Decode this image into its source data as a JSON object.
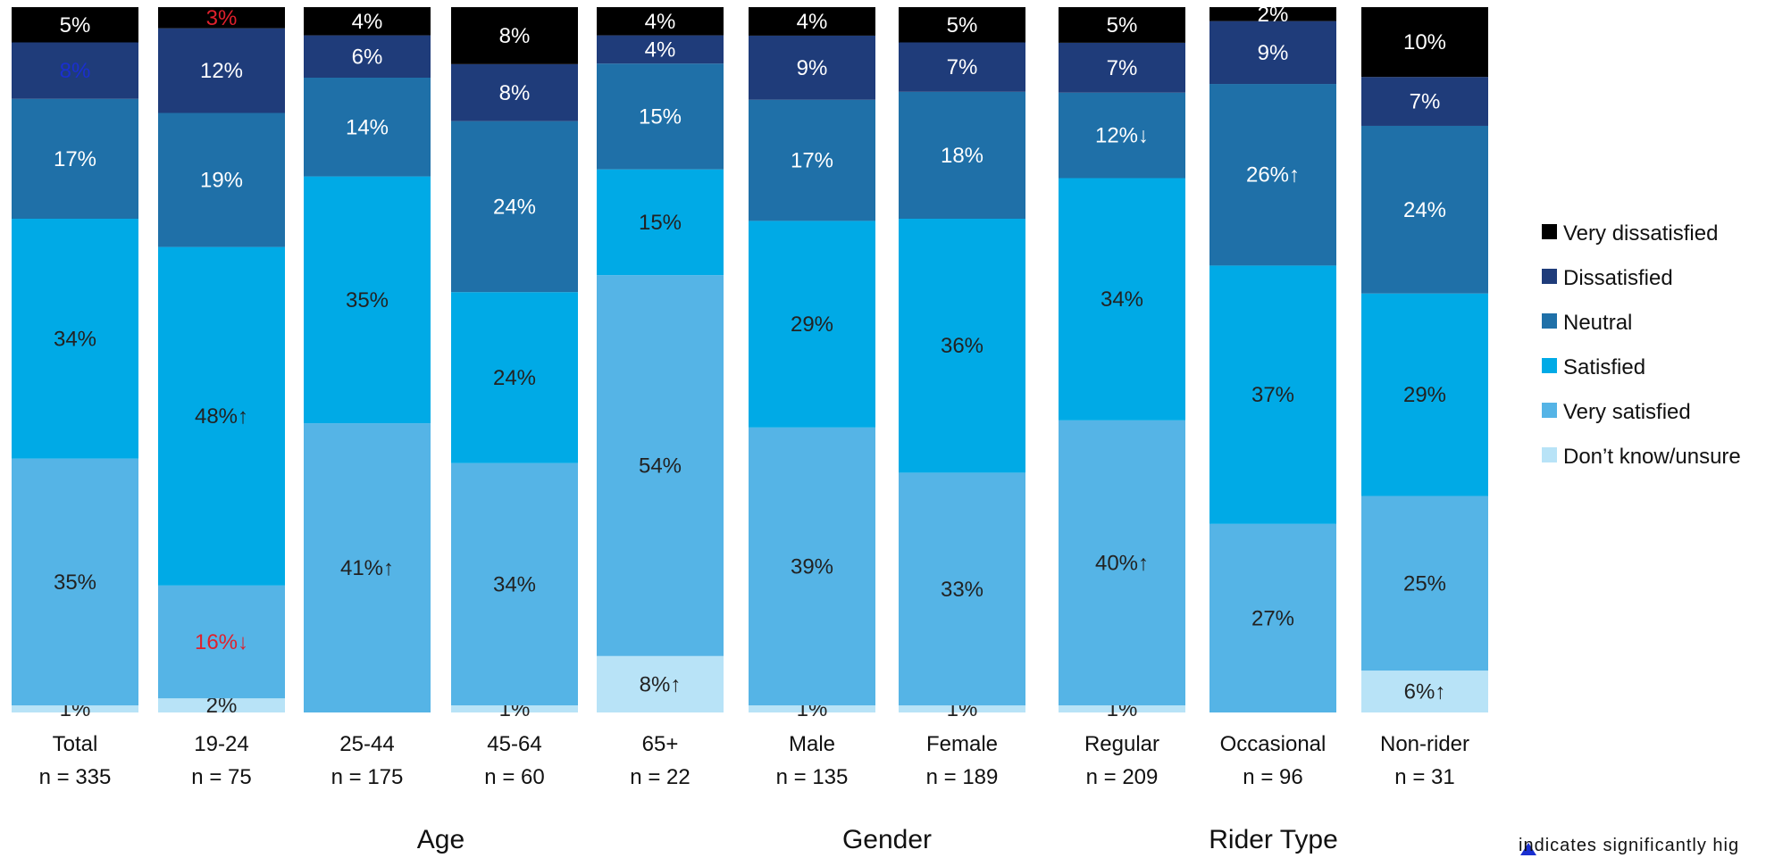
{
  "chart_data": {
    "type": "bar",
    "stacked": true,
    "percent": true,
    "ylim": [
      0,
      100
    ],
    "series": [
      {
        "name": "Don’t know/unsure",
        "color": "#b8e3f7",
        "values": [
          1,
          2,
          0,
          1,
          8,
          1,
          1,
          1,
          0,
          6
        ],
        "labels": [
          "1%",
          "2%",
          "",
          "1%",
          "8%↑",
          "1%",
          "1%",
          "1%",
          "",
          "6%↑"
        ]
      },
      {
        "name": "Very satisfied",
        "color": "#55b4e6",
        "values": [
          35,
          16,
          41,
          34,
          54,
          39,
          33,
          40,
          27,
          25
        ],
        "labels": [
          "35%",
          "16%↓",
          "41%↑",
          "34%",
          "54%",
          "39%",
          "33%",
          "40%↑",
          "27%",
          "25%"
        ]
      },
      {
        "name": "Satisfied",
        "color": "#00aae6",
        "values": [
          34,
          48,
          35,
          24,
          15,
          29,
          36,
          34,
          37,
          29
        ],
        "labels": [
          "34%",
          "48%↑",
          "35%",
          "24%",
          "15%",
          "29%",
          "36%",
          "34%",
          "37%",
          "29%"
        ]
      },
      {
        "name": "Neutral",
        "color": "#1f70a8",
        "values": [
          17,
          19,
          14,
          24,
          15,
          17,
          18,
          12,
          26,
          24
        ],
        "labels": [
          "17%",
          "19%",
          "14%",
          "24%",
          "15%",
          "17%",
          "18%",
          "12%↓",
          "26%↑",
          "24%"
        ]
      },
      {
        "name": "Dissatisfied",
        "color": "#1f3c7a",
        "values": [
          8,
          12,
          6,
          8,
          4,
          9,
          7,
          7,
          9,
          7
        ],
        "labels": [
          "8%",
          "12%",
          "6%",
          "8%",
          "4%",
          "9%",
          "7%",
          "7%",
          "9%",
          "7%"
        ]
      },
      {
        "name": "Very dissatisfied",
        "color": "#000000",
        "values": [
          5,
          3,
          4,
          8,
          4,
          4,
          5,
          5,
          2,
          10
        ],
        "labels": [
          "5%",
          "3%",
          "4%",
          "8%",
          "4%",
          "4%",
          "5%",
          "5%",
          "2%",
          "10%"
        ]
      }
    ],
    "label_styles": {
      "5,1": "sigdown",
      "8,2": "sigup",
      "4,0": "sigup",
      "9,0": "sigup",
      "1,1": "sigdown",
      "7,1": "sigup",
      "7,3": "sigdownbold",
      "8,3": "sigupbold"
    },
    "categories": [
      {
        "name": "Total",
        "n": "n = 335"
      },
      {
        "name": "19-24",
        "n": "n = 75"
      },
      {
        "name": "25-44",
        "n": "n = 175"
      },
      {
        "name": "45-64",
        "n": "n = 60"
      },
      {
        "name": "65+",
        "n": "n = 22"
      },
      {
        "name": "Male",
        "n": "n = 135"
      },
      {
        "name": "Female",
        "n": "n = 189"
      },
      {
        "name": "Regular",
        "n": "n = 209"
      },
      {
        "name": "Occasional",
        "n": "n = 96"
      },
      {
        "name": "Non-rider",
        "n": "n = 31"
      }
    ],
    "groups": [
      {
        "label": "Age",
        "from": 1,
        "to": 4
      },
      {
        "label": "Gender",
        "from": 5,
        "to": 6
      },
      {
        "label": "Rider Type",
        "from": 7,
        "to": 9
      }
    ],
    "legend_position": "right",
    "colors": {
      "sig_up": "#1a2fd0",
      "sig_down": "#e0202c",
      "label_light": "#ffffff",
      "label_dark": "#222222"
    }
  },
  "footnote": "indicates significantly hig"
}
